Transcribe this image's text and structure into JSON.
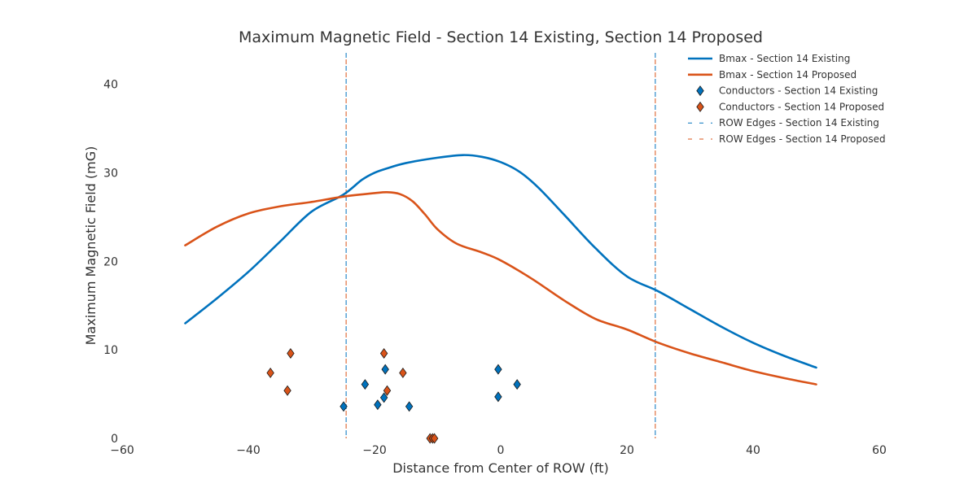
{
  "chart_data": {
    "type": "line",
    "title": "Maximum Magnetic Field - Section 14 Existing, Section 14 Proposed",
    "xlabel": "Distance from Center of ROW (ft)",
    "ylabel": "Maximum Magnetic Field (mG)",
    "xlim": [
      -60,
      60
    ],
    "ylim": [
      0,
      44
    ],
    "xticks": [
      -60,
      -40,
      -20,
      0,
      20,
      40,
      60
    ],
    "yticks": [
      0,
      10,
      20,
      30,
      40
    ],
    "xtick_labels": [
      "−60",
      "−40",
      "−20",
      "0",
      "20",
      "40",
      "60"
    ],
    "ytick_labels": [
      "0",
      "10",
      "20",
      "30",
      "40"
    ],
    "grid": false,
    "legend_position": "top-right",
    "colors": {
      "existing": "#0072bd",
      "proposed": "#d95319"
    },
    "series": [
      {
        "name": "Bmax - Section 14 Existing",
        "kind": "line",
        "color": "#0072bd",
        "points": [
          [
            -50,
            13.0
          ],
          [
            -45,
            15.8
          ],
          [
            -40,
            18.8
          ],
          [
            -35,
            22.2
          ],
          [
            -30,
            25.6
          ],
          [
            -25,
            27.5
          ],
          [
            -22,
            29.2
          ],
          [
            -20,
            30.0
          ],
          [
            -18,
            30.5
          ],
          [
            -15,
            31.1
          ],
          [
            -10,
            31.7
          ],
          [
            -6,
            32.0
          ],
          [
            -3,
            31.8
          ],
          [
            0,
            31.2
          ],
          [
            3,
            30.1
          ],
          [
            6,
            28.3
          ],
          [
            10,
            25.3
          ],
          [
            15,
            21.5
          ],
          [
            20,
            18.3
          ],
          [
            25,
            16.6
          ],
          [
            30,
            14.6
          ],
          [
            35,
            12.6
          ],
          [
            40,
            10.8
          ],
          [
            45,
            9.3
          ],
          [
            50,
            8.0
          ]
        ]
      },
      {
        "name": "Bmax - Section 14 Proposed",
        "kind": "line",
        "color": "#d95319",
        "points": [
          [
            -50,
            21.8
          ],
          [
            -45,
            23.9
          ],
          [
            -40,
            25.4
          ],
          [
            -35,
            26.2
          ],
          [
            -30,
            26.7
          ],
          [
            -25,
            27.3
          ],
          [
            -20,
            27.7
          ],
          [
            -18,
            27.8
          ],
          [
            -16,
            27.6
          ],
          [
            -14,
            26.8
          ],
          [
            -12,
            25.3
          ],
          [
            -10,
            23.6
          ],
          [
            -7,
            22.0
          ],
          [
            -3,
            21.0
          ],
          [
            0,
            20.1
          ],
          [
            5,
            18.0
          ],
          [
            10,
            15.6
          ],
          [
            15,
            13.5
          ],
          [
            20,
            12.3
          ],
          [
            25,
            10.8
          ],
          [
            30,
            9.6
          ],
          [
            35,
            8.6
          ],
          [
            40,
            7.6
          ],
          [
            45,
            6.8
          ],
          [
            50,
            6.1
          ]
        ]
      },
      {
        "name": "Conductors - Section 14 Existing",
        "kind": "scatter",
        "marker": "diamond",
        "color": "#0072bd",
        "points": [
          [
            -24.9,
            3.6
          ],
          [
            -21.5,
            6.1
          ],
          [
            -19.5,
            3.8
          ],
          [
            -18.5,
            4.6
          ],
          [
            -18.3,
            7.8
          ],
          [
            -14.5,
            3.6
          ],
          [
            -0.4,
            4.7
          ],
          [
            -0.4,
            7.8
          ],
          [
            2.6,
            6.1
          ]
        ]
      },
      {
        "name": "Conductors - Section 14 Proposed",
        "kind": "scatter",
        "marker": "diamond",
        "color": "#d95319",
        "points": [
          [
            -36.5,
            7.4
          ],
          [
            -33.8,
            5.4
          ],
          [
            -33.3,
            9.6
          ],
          [
            -18.5,
            9.6
          ],
          [
            -18.0,
            5.4
          ],
          [
            -15.5,
            7.4
          ],
          [
            -11.2,
            0.0
          ],
          [
            -10.8,
            0.0
          ],
          [
            -10.5,
            0.0
          ]
        ]
      },
      {
        "name": "ROW Edges - Section 14 Existing",
        "kind": "vline",
        "color": "#0072bd",
        "x": [
          -24.5,
          24.5
        ]
      },
      {
        "name": "ROW Edges - Section 14 Proposed",
        "kind": "vline",
        "color": "#d95319",
        "x": [
          -24.5,
          24.5
        ]
      }
    ]
  }
}
